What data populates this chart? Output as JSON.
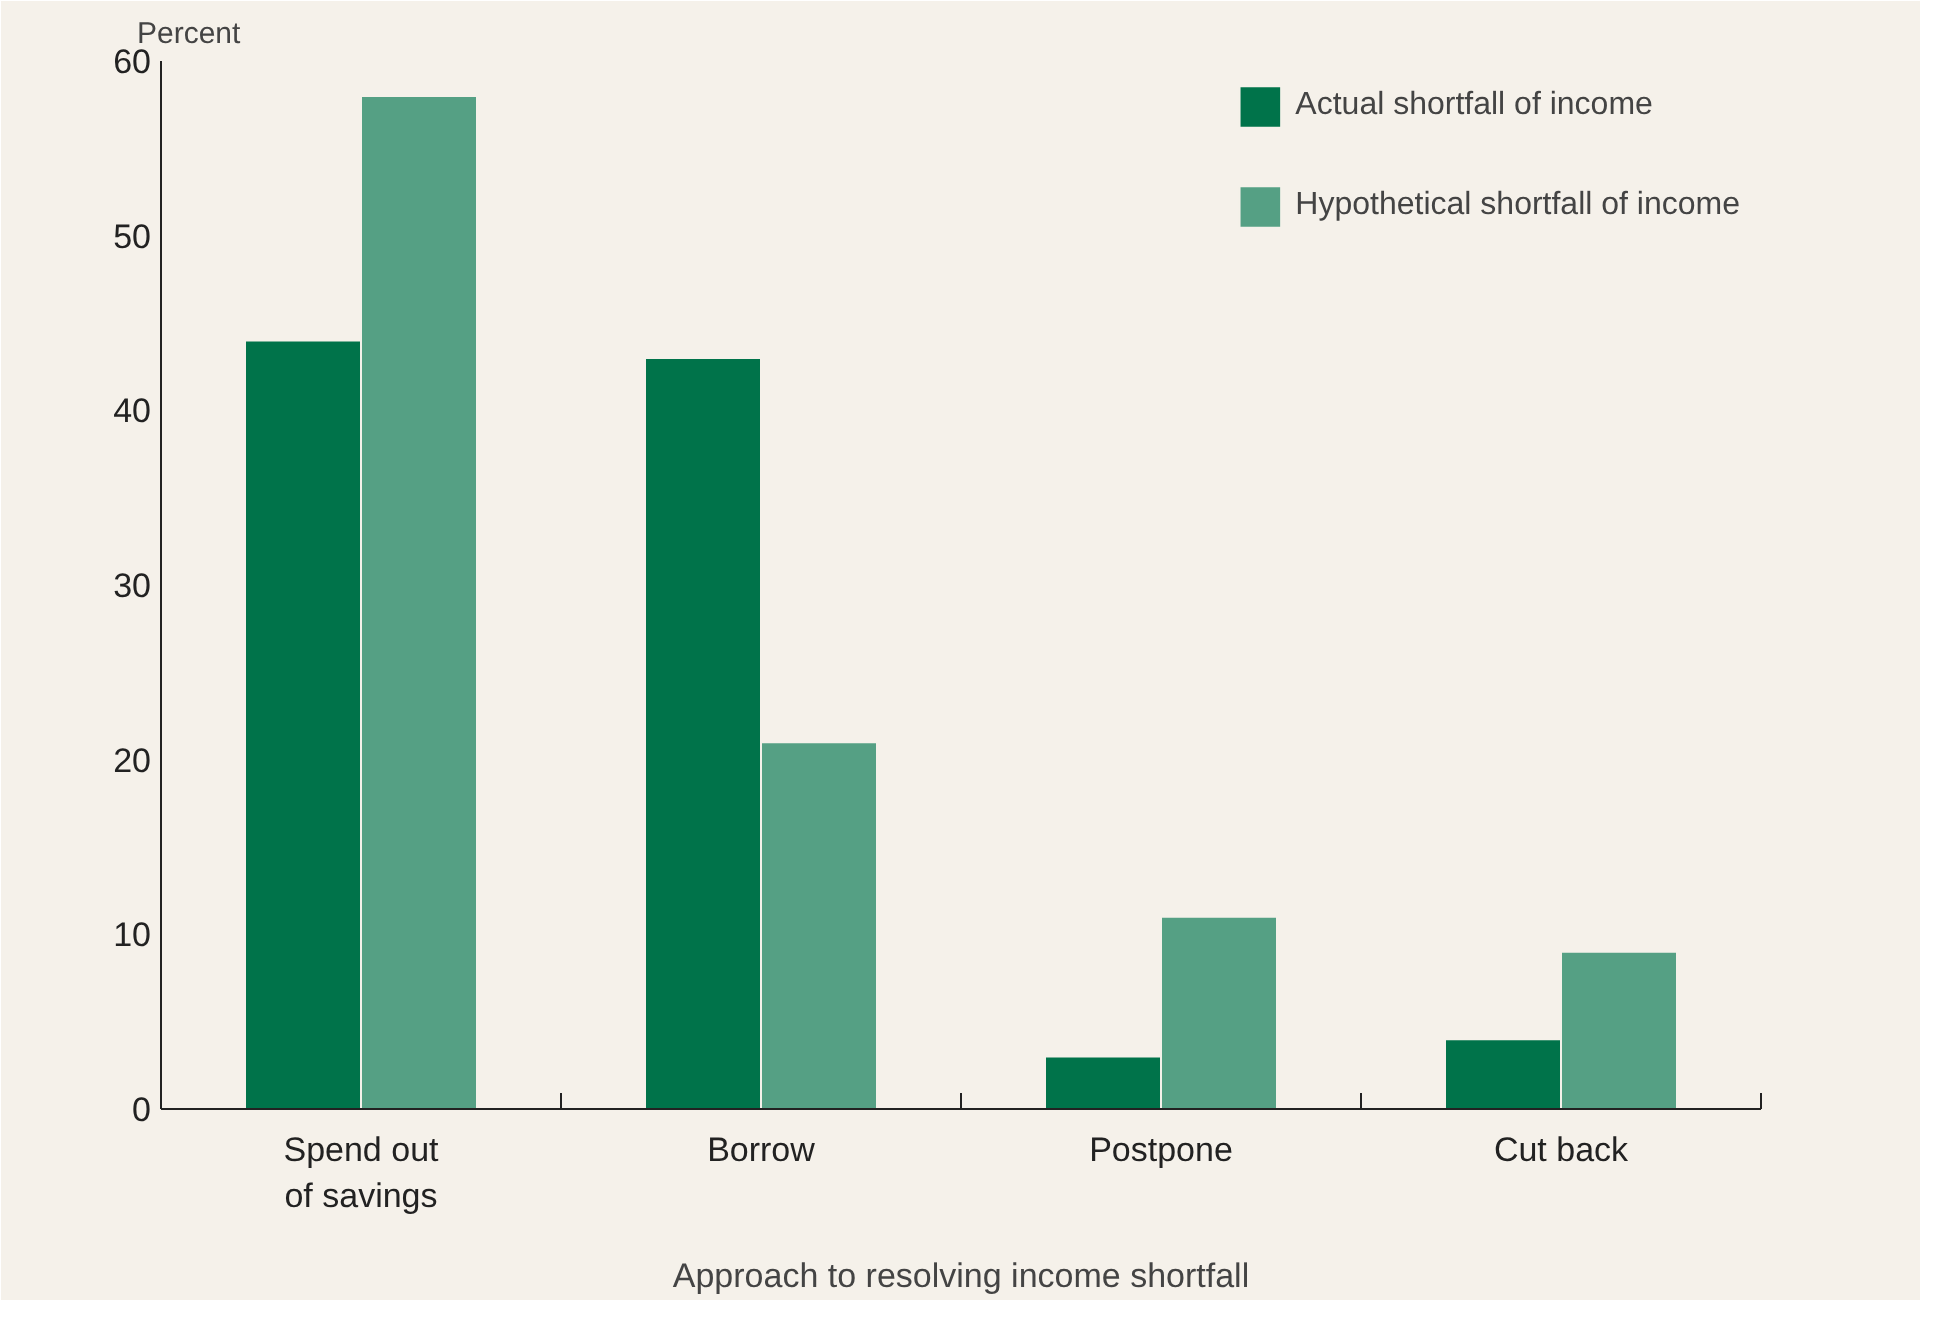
{
  "chart_data": {
    "type": "bar",
    "ylabel": "Percent",
    "xlabel": "Approach to resolving income shortfall",
    "categories": [
      "Spend out\nof savings",
      "Borrow",
      "Postpone",
      "Cut back"
    ],
    "series": [
      {
        "name": "Actual shortfall of income",
        "color": "#00734a",
        "values": [
          44,
          43,
          3,
          4
        ]
      },
      {
        "name": "Hypothetical shortfall of income",
        "color": "#55a084",
        "values": [
          58,
          21,
          11,
          9
        ]
      }
    ],
    "ylim": [
      0,
      60
    ],
    "yticks": [
      0,
      10,
      20,
      30,
      40,
      50,
      60
    ],
    "grid": false,
    "legend": "top right"
  }
}
